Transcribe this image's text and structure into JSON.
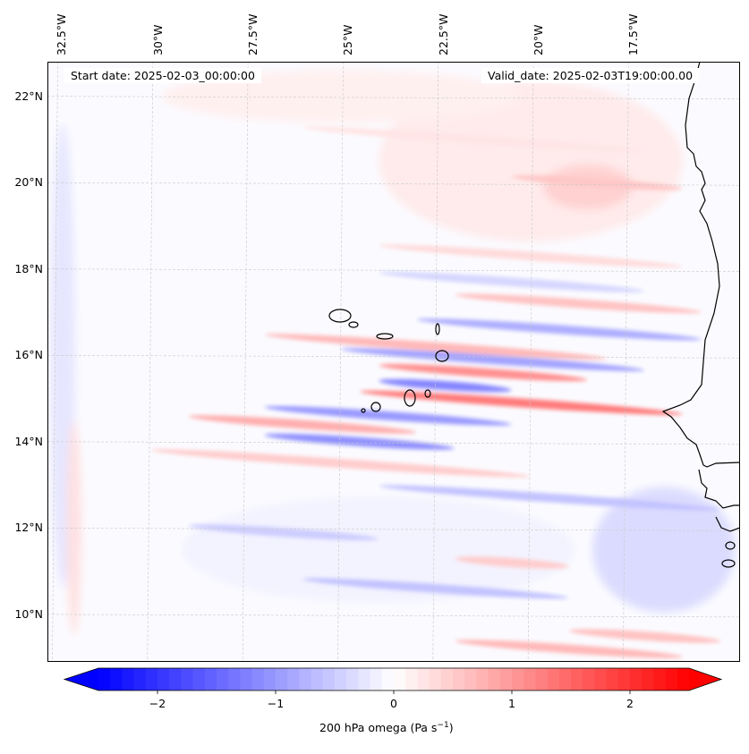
{
  "chart_data": {
    "type": "heatmap",
    "title": "",
    "variable": "200 hPa omega",
    "units": "Pa s^-1",
    "colorbar_label": {
      "main": "200 hPa omega (Pa s",
      "sup": "−1",
      "close": ")"
    },
    "colormap": "bwr",
    "colorbar_range": [
      -2.5,
      2.5
    ],
    "colorbar_extend": "both",
    "colorbar_ticks": [
      -2,
      -1,
      0,
      1,
      2
    ],
    "colorbar_tick_labels": [
      "−2",
      "−1",
      "0",
      "1",
      "2"
    ],
    "colors": {
      "min": "#0000ff",
      "mid": "#ffffff",
      "max": "#ff0000"
    },
    "lon_range": [
      -32.7,
      -14.5
    ],
    "lat_range": [
      8.9,
      22.8
    ],
    "lon_ticks": [
      -32.5,
      -30,
      -27.5,
      -25,
      -22.5,
      -20,
      -17.5
    ],
    "lon_tick_labels": [
      "32.5°W",
      "30°W",
      "27.5°W",
      "25°W",
      "22.5°W",
      "20°W",
      "17.5°W"
    ],
    "lat_ticks": [
      22,
      20,
      18,
      16,
      14,
      12,
      10
    ],
    "lat_tick_labels": [
      "22°N",
      "20°N",
      "18°N",
      "16°N",
      "14°N",
      "12°N",
      "10°N"
    ],
    "grid": true,
    "start_date_label": "Start date: 2025-02-03_00:00:00",
    "valid_date_label": "Valid_date: 2025-02-03T19:00:00.00",
    "features": [
      {
        "name": "Cape Verde islands",
        "value_note": "strong alternating bands ±1 to ±1.5 Pa/s near 15-16°N"
      },
      {
        "name": "West African coast",
        "value_note": "weak positive (~0.3-0.6) north of 15°N, weak negative south"
      }
    ],
    "bands": [
      {
        "lat": 21.0,
        "lon_start": -26,
        "lon_end": -17,
        "value": 0.25
      },
      {
        "lat": 20.0,
        "lon_start": -20.5,
        "lon_end": -16,
        "value": 0.55
      },
      {
        "lat": 18.3,
        "lon_start": -24,
        "lon_end": -16,
        "value": 0.35
      },
      {
        "lat": 17.7,
        "lon_start": -24,
        "lon_end": -17,
        "value": -0.4
      },
      {
        "lat": 17.2,
        "lon_start": -22,
        "lon_end": -15.5,
        "value": 0.6
      },
      {
        "lat": 16.6,
        "lon_start": -23,
        "lon_end": -15.5,
        "value": -0.8
      },
      {
        "lat": 16.2,
        "lon_start": -27,
        "lon_end": -18,
        "value": 0.7
      },
      {
        "lat": 15.9,
        "lon_start": -25,
        "lon_end": -17,
        "value": -0.9
      },
      {
        "lat": 15.6,
        "lon_start": -24,
        "lon_end": -18.5,
        "value": 1.1
      },
      {
        "lat": 15.3,
        "lon_start": -24,
        "lon_end": -20.5,
        "value": -1.2
      },
      {
        "lat": 14.9,
        "lon_start": -24.5,
        "lon_end": -16,
        "value": 1.3
      },
      {
        "lat": 14.6,
        "lon_start": -27,
        "lon_end": -20.5,
        "value": -1.0
      },
      {
        "lat": 14.4,
        "lon_start": -29,
        "lon_end": -23,
        "value": 0.8
      },
      {
        "lat": 14.0,
        "lon_start": -27,
        "lon_end": -22,
        "value": -1.1
      },
      {
        "lat": 13.5,
        "lon_start": -30,
        "lon_end": -20,
        "value": 0.5
      },
      {
        "lat": 12.7,
        "lon_start": -24,
        "lon_end": -15,
        "value": -0.6
      },
      {
        "lat": 11.9,
        "lon_start": -29,
        "lon_end": -24,
        "value": -0.5
      },
      {
        "lat": 11.2,
        "lon_start": -22,
        "lon_end": -19,
        "value": 0.5
      },
      {
        "lat": 10.6,
        "lon_start": -26,
        "lon_end": -19,
        "value": -0.6
      },
      {
        "lat": 9.5,
        "lon_start": -19,
        "lon_end": -15,
        "value": 0.6
      },
      {
        "lat": 9.2,
        "lon_start": -22,
        "lon_end": -16,
        "value": 0.7
      }
    ]
  }
}
